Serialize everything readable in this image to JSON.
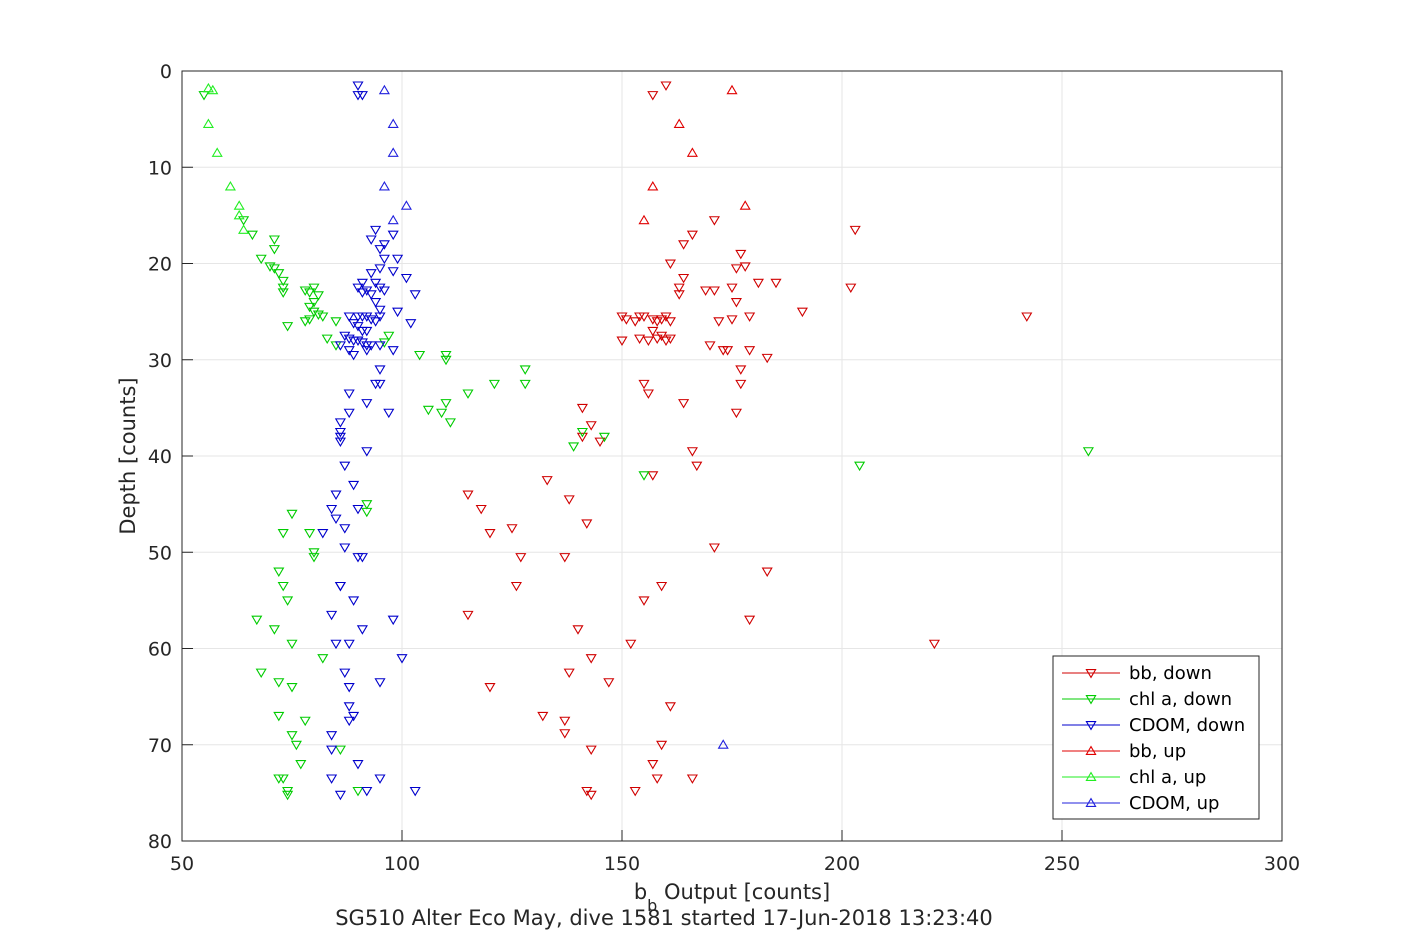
{
  "figure": {
    "title": "SG510 Alter Eco May, dive 1581 started 17-Jun-2018 13:23:40"
  },
  "chart_data": {
    "type": "scatter",
    "xlabel_main": "b",
    "xlabel_sub": "b",
    "xlabel_rest": " Output [counts]",
    "ylabel": "Depth [counts]",
    "xlim": [
      50,
      300
    ],
    "ylim": [
      0,
      80
    ],
    "y_reversed": true,
    "grid": true,
    "xticks": [
      50,
      100,
      150,
      200,
      250,
      300
    ],
    "yticks": [
      0,
      10,
      20,
      30,
      40,
      50,
      60,
      70,
      80
    ],
    "legend_position": "bottom-right",
    "series": [
      {
        "name": "bb, down",
        "color": "#d00000",
        "marker": "triangle-down",
        "points": [
          [
            160,
            1.5
          ],
          [
            157,
            2.5
          ],
          [
            171,
            15.5
          ],
          [
            203,
            16.5
          ],
          [
            166,
            17
          ],
          [
            164,
            18
          ],
          [
            177,
            19
          ],
          [
            161,
            20
          ],
          [
            176,
            20.5
          ],
          [
            178,
            20.3
          ],
          [
            164,
            21.5
          ],
          [
            181,
            22
          ],
          [
            185,
            22
          ],
          [
            175,
            22.5
          ],
          [
            169,
            22.8
          ],
          [
            171,
            22.8
          ],
          [
            163,
            22.5
          ],
          [
            163,
            23.2
          ],
          [
            202,
            22.5
          ],
          [
            176,
            24
          ],
          [
            191,
            25
          ],
          [
            242,
            25.5
          ],
          [
            150,
            25.5
          ],
          [
            151,
            25.8
          ],
          [
            153,
            26
          ],
          [
            154,
            25.5
          ],
          [
            155,
            25.5
          ],
          [
            157,
            25.8
          ],
          [
            158,
            26
          ],
          [
            159,
            25.8
          ],
          [
            160,
            25.5
          ],
          [
            161,
            26
          ],
          [
            175,
            25.8
          ],
          [
            179,
            25.5
          ],
          [
            172,
            26
          ],
          [
            157,
            27
          ],
          [
            159,
            27.5
          ],
          [
            150,
            28
          ],
          [
            154,
            27.8
          ],
          [
            156,
            28
          ],
          [
            158,
            27.8
          ],
          [
            160,
            28
          ],
          [
            161,
            27.8
          ],
          [
            170,
            28.5
          ],
          [
            174,
            29
          ],
          [
            173,
            29
          ],
          [
            179,
            29
          ],
          [
            183,
            29.8
          ],
          [
            177,
            31
          ],
          [
            177,
            32.5
          ],
          [
            155,
            32.5
          ],
          [
            156,
            33.5
          ],
          [
            164,
            34.5
          ],
          [
            141,
            35
          ],
          [
            176,
            35.5
          ],
          [
            143,
            36.8
          ],
          [
            141,
            38
          ],
          [
            145,
            38.5
          ],
          [
            166,
            39.5
          ],
          [
            167,
            41
          ],
          [
            157,
            42
          ],
          [
            133,
            42.5
          ],
          [
            138,
            44.5
          ],
          [
            115,
            44
          ],
          [
            118,
            45.5
          ],
          [
            142,
            47
          ],
          [
            125,
            47.5
          ],
          [
            120,
            48
          ],
          [
            171,
            49.5
          ],
          [
            137,
            50.5
          ],
          [
            127,
            50.5
          ],
          [
            126,
            53.5
          ],
          [
            159,
            53.5
          ],
          [
            183,
            52
          ],
          [
            155,
            55
          ],
          [
            115,
            56.5
          ],
          [
            179,
            57
          ],
          [
            140,
            58
          ],
          [
            143,
            61
          ],
          [
            152,
            59.5
          ],
          [
            221,
            59.5
          ],
          [
            138,
            62.5
          ],
          [
            147,
            63.5
          ],
          [
            120,
            64
          ],
          [
            161,
            66
          ],
          [
            132,
            67
          ],
          [
            137,
            67.5
          ],
          [
            137,
            68.8
          ],
          [
            159,
            70
          ],
          [
            143,
            70.5
          ],
          [
            157,
            72
          ],
          [
            158,
            73.5
          ],
          [
            166,
            73.5
          ],
          [
            142,
            74.8
          ],
          [
            143,
            75.2
          ],
          [
            153,
            74.8
          ]
        ]
      },
      {
        "name": "chl a, down",
        "color": "#00cc00",
        "marker": "triangle-down",
        "points": [
          [
            55,
            2.5
          ],
          [
            64,
            15.5
          ],
          [
            66,
            17
          ],
          [
            71,
            17.5
          ],
          [
            71,
            18.5
          ],
          [
            68,
            19.5
          ],
          [
            70,
            20.3
          ],
          [
            71,
            20.5
          ],
          [
            72,
            21
          ],
          [
            73,
            21.8
          ],
          [
            73,
            22.5
          ],
          [
            73,
            23
          ],
          [
            78,
            22.8
          ],
          [
            80,
            22.5
          ],
          [
            79,
            23
          ],
          [
            81,
            23.3
          ],
          [
            80,
            24
          ],
          [
            79,
            24.5
          ],
          [
            80,
            25
          ],
          [
            81,
            25.3
          ],
          [
            79,
            25.8
          ],
          [
            78,
            26
          ],
          [
            82,
            25.5
          ],
          [
            85,
            26
          ],
          [
            74,
            26.5
          ],
          [
            83,
            27.8
          ],
          [
            85,
            28.5
          ],
          [
            96,
            28.2
          ],
          [
            97,
            27.5
          ],
          [
            110,
            29.5
          ],
          [
            110,
            30
          ],
          [
            128,
            31
          ],
          [
            104,
            29.5
          ],
          [
            128,
            32.5
          ],
          [
            115,
            33.5
          ],
          [
            110,
            34.5
          ],
          [
            109,
            35.5
          ],
          [
            106,
            35.2
          ],
          [
            121,
            32.5
          ],
          [
            111,
            36.5
          ],
          [
            141,
            37.5
          ],
          [
            146,
            38
          ],
          [
            139,
            39
          ],
          [
            256,
            39.5
          ],
          [
            204,
            41
          ],
          [
            155,
            42
          ],
          [
            75,
            46
          ],
          [
            92,
            45
          ],
          [
            92,
            45.8
          ],
          [
            73,
            48
          ],
          [
            79,
            48
          ],
          [
            80,
            50
          ],
          [
            80,
            50.5
          ],
          [
            72,
            52
          ],
          [
            73,
            53.5
          ],
          [
            74,
            55
          ],
          [
            67,
            57
          ],
          [
            71,
            58
          ],
          [
            75,
            59.5
          ],
          [
            82,
            61
          ],
          [
            68,
            62.5
          ],
          [
            72,
            63.5
          ],
          [
            75,
            64
          ],
          [
            72,
            67
          ],
          [
            78,
            67.5
          ],
          [
            75,
            69
          ],
          [
            76,
            70
          ],
          [
            86,
            70.5
          ],
          [
            77,
            72
          ],
          [
            72,
            73.5
          ],
          [
            73,
            73.5
          ],
          [
            74,
            74.8
          ],
          [
            74,
            75.2
          ],
          [
            90,
            74.8
          ]
        ]
      },
      {
        "name": "CDOM, down",
        "color": "#0000cc",
        "marker": "triangle-down",
        "points": [
          [
            90,
            2.5
          ],
          [
            91,
            2.5
          ],
          [
            90,
            1.5
          ],
          [
            96,
            18
          ],
          [
            98,
            17
          ],
          [
            94,
            16.5
          ],
          [
            93,
            17.5
          ],
          [
            95,
            18.5
          ],
          [
            96,
            19.5
          ],
          [
            99,
            19.5
          ],
          [
            98,
            20.8
          ],
          [
            95,
            20.5
          ],
          [
            93,
            21
          ],
          [
            91,
            22
          ],
          [
            94,
            22
          ],
          [
            95,
            22.5
          ],
          [
            101,
            21.5
          ],
          [
            90,
            22.5
          ],
          [
            92,
            22.8
          ],
          [
            91,
            23
          ],
          [
            93,
            23.2
          ],
          [
            96,
            22.8
          ],
          [
            103,
            23.2
          ],
          [
            94,
            24
          ],
          [
            95,
            24.8
          ],
          [
            99,
            25
          ],
          [
            88,
            25.5
          ],
          [
            90,
            25.5
          ],
          [
            91,
            25.5
          ],
          [
            92,
            25.5
          ],
          [
            93,
            25.8
          ],
          [
            94,
            26
          ],
          [
            95,
            25.5
          ],
          [
            89,
            26.2
          ],
          [
            90,
            26.5
          ],
          [
            91,
            27
          ],
          [
            92,
            27
          ],
          [
            87,
            27.5
          ],
          [
            88,
            27.8
          ],
          [
            89,
            28
          ],
          [
            90,
            28
          ],
          [
            91,
            28.2
          ],
          [
            92,
            28.5
          ],
          [
            93,
            28.5
          ],
          [
            95,
            28.5
          ],
          [
            98,
            29
          ],
          [
            86,
            28.5
          ],
          [
            88,
            29
          ],
          [
            89,
            29.5
          ],
          [
            92,
            29
          ],
          [
            102,
            26.2
          ],
          [
            95,
            31
          ],
          [
            94,
            32.5
          ],
          [
            95,
            32.5
          ],
          [
            97,
            35.5
          ],
          [
            88,
            33.5
          ],
          [
            88,
            35.5
          ],
          [
            86,
            36.5
          ],
          [
            86,
            37.5
          ],
          [
            92,
            34.5
          ],
          [
            92,
            39.5
          ],
          [
            86,
            38
          ],
          [
            86,
            38.5
          ],
          [
            87,
            41
          ],
          [
            89,
            43
          ],
          [
            85,
            44
          ],
          [
            84,
            45.5
          ],
          [
            85,
            46.5
          ],
          [
            87,
            47.5
          ],
          [
            82,
            48
          ],
          [
            90,
            45.5
          ],
          [
            87,
            49.5
          ],
          [
            90,
            50.5
          ],
          [
            91,
            50.5
          ],
          [
            86,
            53.5
          ],
          [
            86,
            53.5
          ],
          [
            89,
            55
          ],
          [
            84,
            56.5
          ],
          [
            98,
            57
          ],
          [
            91,
            58
          ],
          [
            85,
            59.5
          ],
          [
            88,
            59.5
          ],
          [
            100,
            61
          ],
          [
            87,
            62.5
          ],
          [
            88,
            64
          ],
          [
            95,
            63.5
          ],
          [
            88,
            66
          ],
          [
            88,
            67.5
          ],
          [
            89,
            67
          ],
          [
            84,
            69
          ],
          [
            84,
            70.5
          ],
          [
            90,
            72
          ],
          [
            84,
            73.5
          ],
          [
            95,
            73.5
          ],
          [
            92,
            74.8
          ],
          [
            86,
            75.2
          ],
          [
            103,
            74.8
          ]
        ]
      },
      {
        "name": "bb, up",
        "color": "#e00000",
        "marker": "triangle-up",
        "points": [
          [
            175,
            2
          ],
          [
            163,
            5.5
          ],
          [
            166,
            8.5
          ],
          [
            157,
            12
          ],
          [
            178,
            14
          ],
          [
            155,
            15.5
          ]
        ]
      },
      {
        "name": "chl a, up",
        "color": "#22ee22",
        "marker": "triangle-up",
        "points": [
          [
            56,
            1.8
          ],
          [
            57,
            2
          ],
          [
            56,
            5.5
          ],
          [
            58,
            8.5
          ],
          [
            61,
            12
          ],
          [
            63,
            14
          ],
          [
            63,
            15
          ],
          [
            64,
            16.5
          ]
        ]
      },
      {
        "name": "CDOM, up",
        "color": "#2020dd",
        "marker": "triangle-up",
        "points": [
          [
            96,
            2
          ],
          [
            98,
            5.5
          ],
          [
            98,
            8.5
          ],
          [
            96,
            12
          ],
          [
            101,
            14
          ],
          [
            98,
            15.5
          ],
          [
            173,
            70
          ]
        ]
      }
    ]
  }
}
